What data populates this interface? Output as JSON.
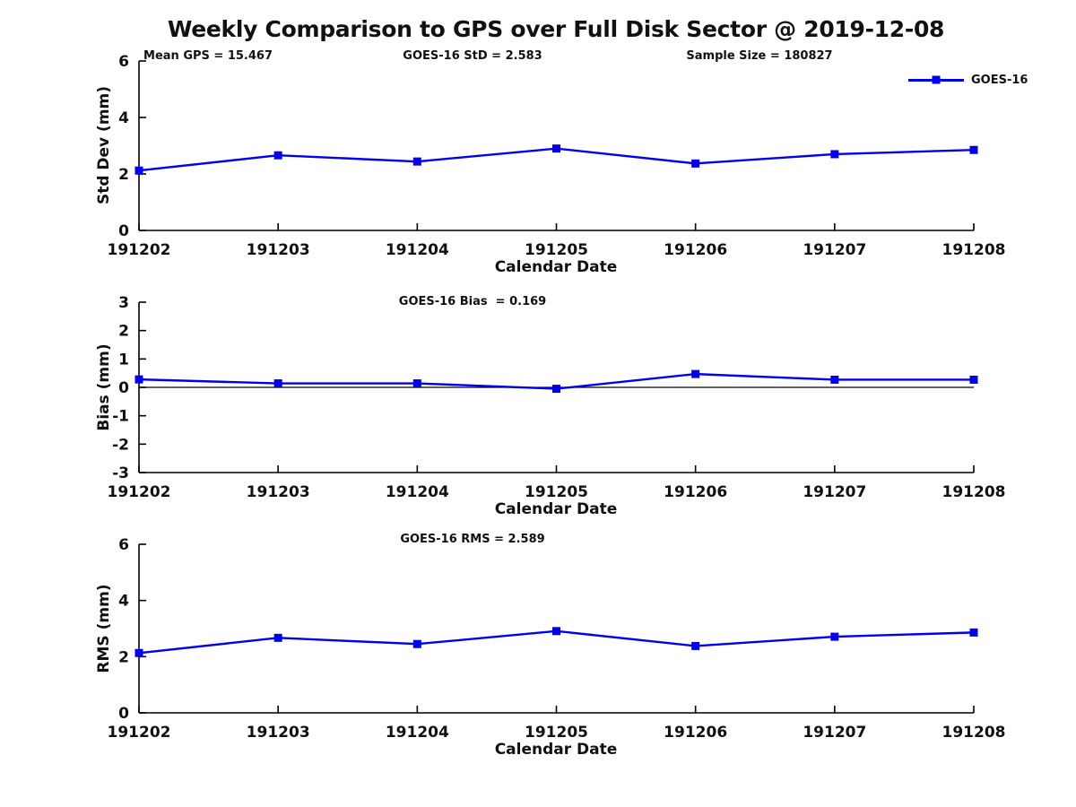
{
  "title": "Weekly Comparison to GPS over Full Disk Sector @ 2019-12-08",
  "legend": {
    "label": "GOES-16",
    "line_color": "#0000ee"
  },
  "colors": {
    "series_blue": "#0000ee",
    "axis_black": "#000000",
    "text": "#111111",
    "background": "#ffffff"
  },
  "chart_data": [
    {
      "type": "line",
      "name": "std-dev-vs-date",
      "ylabel": "Std Dev (mm)",
      "xlabel": "Calendar Date",
      "categories": [
        "191202",
        "191203",
        "191204",
        "191205",
        "191206",
        "191207",
        "191208"
      ],
      "series": [
        {
          "name": "GOES-16",
          "color": "#0000ee",
          "marker": "square",
          "values": [
            2.12,
            2.66,
            2.44,
            2.9,
            2.37,
            2.7,
            2.85
          ]
        }
      ],
      "ylim": [
        0,
        6
      ],
      "yticks": [
        0,
        2,
        4,
        6
      ],
      "grid": false,
      "zero_line": false,
      "legend_position": "top-right-outside",
      "annotations": [
        "Mean GPS = 15.467",
        "GOES-16 StD = 2.583",
        "Sample Size = 180827"
      ]
    },
    {
      "type": "line",
      "name": "bias-vs-date",
      "ylabel": "Bias (mm)",
      "xlabel": "Calendar Date",
      "categories": [
        "191202",
        "191203",
        "191204",
        "191205",
        "191206",
        "191207",
        "191208"
      ],
      "series": [
        {
          "name": "GOES-16",
          "color": "#0000ee",
          "marker": "square",
          "values": [
            0.28,
            0.14,
            0.14,
            -0.05,
            0.47,
            0.27,
            0.27
          ]
        }
      ],
      "ylim": [
        -3,
        3
      ],
      "yticks": [
        -3,
        -2,
        -1,
        0,
        1,
        2,
        3
      ],
      "grid": false,
      "zero_line": true,
      "annotations": [
        "GOES-16 Bias  = 0.169"
      ]
    },
    {
      "type": "line",
      "name": "rms-vs-date",
      "ylabel": "RMS (mm)",
      "xlabel": "Calendar Date",
      "categories": [
        "191202",
        "191203",
        "191204",
        "191205",
        "191206",
        "191207",
        "191208"
      ],
      "series": [
        {
          "name": "GOES-16",
          "color": "#0000ee",
          "marker": "square",
          "values": [
            2.13,
            2.67,
            2.45,
            2.91,
            2.38,
            2.71,
            2.86
          ]
        }
      ],
      "ylim": [
        0,
        6
      ],
      "yticks": [
        0,
        2,
        4,
        6
      ],
      "grid": false,
      "zero_line": false,
      "annotations": [
        "GOES-16 RMS = 2.589"
      ]
    }
  ]
}
